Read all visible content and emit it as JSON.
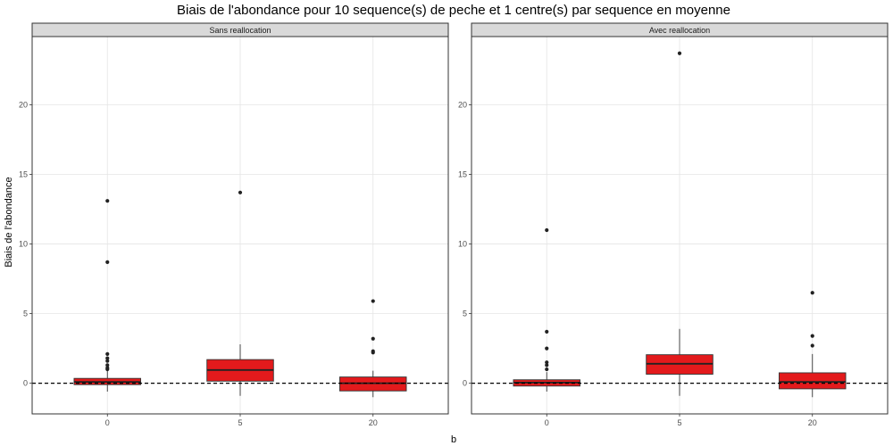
{
  "chart_data": {
    "type": "boxplot",
    "title": "Biais de l'abondance pour 10 sequence(s) de peche et 1 centre(s) par sequence en moyenne",
    "xlabel": "b",
    "ylabel": "Biais de l'abondance",
    "ylim": [
      -2.2,
      24.9
    ],
    "y_ticks": [
      0,
      5,
      10,
      15,
      20
    ],
    "x_categories": [
      "0",
      "5",
      "20"
    ],
    "reference_line": {
      "y": 0,
      "style": "dashed"
    },
    "grid": true,
    "fill_color": "#e31a1c",
    "panels": [
      {
        "label": "Sans reallocation",
        "boxes": [
          {
            "x": "0",
            "lower_whisker": -0.6,
            "q1": -0.1,
            "median": 0.1,
            "q3": 0.35,
            "upper_whisker": 0.9,
            "outliers": [
              13.1,
              8.7,
              2.1,
              1.8,
              1.6,
              1.3,
              1.1,
              1.0
            ]
          },
          {
            "x": "5",
            "lower_whisker": -0.9,
            "q1": 0.15,
            "median": 0.95,
            "q3": 1.7,
            "upper_whisker": 2.8,
            "outliers": [
              13.7
            ]
          },
          {
            "x": "20",
            "lower_whisker": -1.0,
            "q1": -0.55,
            "median": 0.0,
            "q3": 0.45,
            "upper_whisker": 0.9,
            "outliers": [
              5.9,
              3.2,
              2.3,
              2.2
            ]
          }
        ]
      },
      {
        "label": "Avec reallocation",
        "boxes": [
          {
            "x": "0",
            "lower_whisker": -0.6,
            "q1": -0.2,
            "median": 0.05,
            "q3": 0.25,
            "upper_whisker": 0.8,
            "outliers": [
              11.0,
              3.7,
              2.5,
              1.5,
              1.3,
              1.0
            ]
          },
          {
            "x": "5",
            "lower_whisker": -0.9,
            "q1": 0.65,
            "median": 1.4,
            "q3": 2.05,
            "upper_whisker": 3.9,
            "outliers": [
              23.7
            ]
          },
          {
            "x": "20",
            "lower_whisker": -1.0,
            "q1": -0.4,
            "median": 0.1,
            "q3": 0.75,
            "upper_whisker": 2.1,
            "outliers": [
              6.5,
              3.4,
              2.7
            ]
          }
        ]
      }
    ]
  }
}
